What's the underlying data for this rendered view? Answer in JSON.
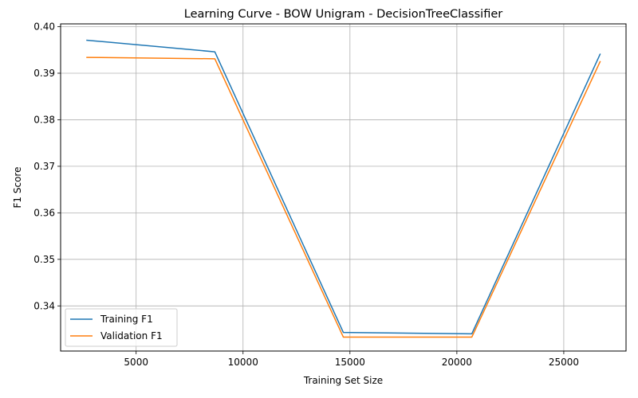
{
  "chart_data": {
    "type": "line",
    "title": "Learning Curve - BOW Unigram - DecisionTreeClassifier",
    "xlabel": "Training Set Size",
    "ylabel": "F1 Score",
    "x": [
      2670,
      8680,
      14690,
      20700,
      26710
    ],
    "xlim": [
      1468,
      27912
    ],
    "ylim": [
      0.3303,
      0.4006
    ],
    "xticks": [
      5000,
      10000,
      15000,
      20000,
      25000
    ],
    "xtick_labels": [
      "5000",
      "10000",
      "15000",
      "20000",
      "25000"
    ],
    "yticks": [
      0.34,
      0.35,
      0.36,
      0.37,
      0.38,
      0.39,
      0.4
    ],
    "ytick_labels": [
      "0.34",
      "0.35",
      "0.36",
      "0.37",
      "0.38",
      "0.39",
      "0.40"
    ],
    "grid": true,
    "legend_position": "lower-left",
    "series": [
      {
        "name": "Training F1",
        "color": "#1f77b4",
        "values": [
          0.3971,
          0.3946,
          0.3343,
          0.334,
          0.3942
        ]
      },
      {
        "name": "Validation F1",
        "color": "#ff7f0e",
        "values": [
          0.3934,
          0.3931,
          0.3333,
          0.3333,
          0.3926
        ]
      }
    ]
  }
}
